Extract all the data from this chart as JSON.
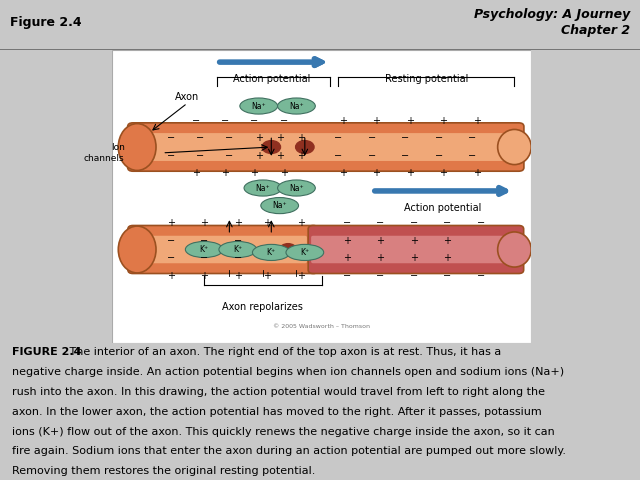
{
  "title_left": "Figure 2.4",
  "title_right": "Psychology: A Journey\nChapter 2",
  "background_color": "#c8c8c8",
  "panel_bg": "#ffffff",
  "body_text_bold": "FIGURE 2.4",
  "body_text": " The interior of an axon. The right end of the top axon is at rest. Thus, it has a\nnegative charge inside. An action potential begins when ion channels open and sodium ions (Na+)\nrush into the axon. In this drawing, the action potential would travel from left to right along the\naxon. In the lower axon, the action potential has moved to the right. After it passes, potassium\nions (K+) flow out of the axon. This quickly renews the negative charge inside the axon, so it can\nfire again. Sodium ions that enter the axon during an action potential are pumped out more slowly.\nRemoving them restores the original resting potential.",
  "axon_orange_outer": "#E07848",
  "axon_orange_inner": "#F0A878",
  "axon_red_outer": "#C05050",
  "axon_red_inner": "#D88080",
  "ion_color": "#78B898",
  "arrow_blue": "#3878B0",
  "copyright": "© 2005 Wadsworth – Thomson"
}
